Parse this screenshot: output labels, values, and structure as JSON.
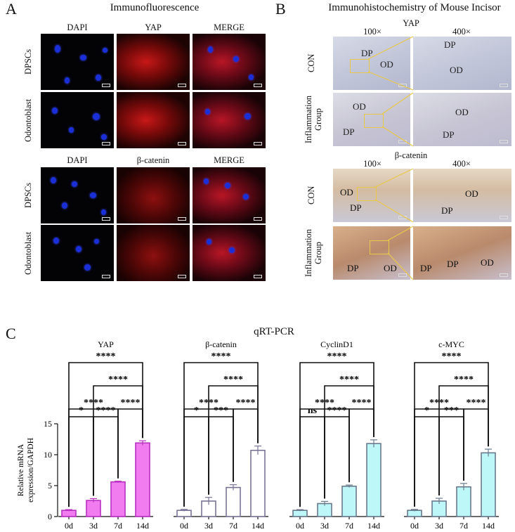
{
  "panel_a": {
    "letter": "A",
    "title": "Immunofluorescence",
    "yap_block": {
      "columns": [
        "DAPI",
        "YAP",
        "MERGE"
      ],
      "rows": [
        "DPSCs",
        "Odontoblast"
      ]
    },
    "catenin_block": {
      "columns": [
        "DAPI",
        "β-catenin",
        "MERGE"
      ],
      "rows": [
        "DPSCs",
        "Odontoblast"
      ]
    }
  },
  "panel_b": {
    "letter": "B",
    "title": "Immunohistochemistry of Mouse Incisor",
    "yap_block": {
      "marker": "YAP",
      "mag_low": "100×",
      "mag_high": "400×",
      "rows": [
        "CON",
        "Inflammation Group"
      ]
    },
    "catenin_block": {
      "marker": "β-catenin",
      "mag_low": "100×",
      "mag_high": "400×",
      "rows": [
        "CON",
        "Inflammation Group"
      ]
    },
    "tissue_labels": {
      "dp": "DP",
      "od": "OD"
    }
  },
  "panel_c": {
    "letter": "C",
    "title": "qRT-PCR"
  },
  "chart_data": {
    "type": "bar",
    "title": "qRT-PCR",
    "ylabel": "Relative mRNA expression/GAPDH",
    "ylim": [
      0,
      15
    ],
    "yticks": [
      0,
      5,
      10,
      15
    ],
    "categories": [
      "0d",
      "3d",
      "7d",
      "14d"
    ],
    "series": [
      {
        "name": "YAP",
        "values": [
          1.0,
          2.6,
          5.6,
          11.9
        ],
        "errors": [
          0.12,
          0.3,
          0.12,
          0.35
        ],
        "fill": "#f07cf0",
        "stroke": "#b830c0",
        "sig": {
          "0d-3d": "*",
          "3d-7d": "****",
          "7d-14d": "****",
          "0d-7d": "****",
          "3d-14d": "****",
          "0d-14d": "****"
        }
      },
      {
        "name": "β-catenin",
        "values": [
          1.0,
          2.5,
          4.7,
          10.7
        ],
        "errors": [
          0.15,
          0.6,
          0.45,
          0.7
        ],
        "fill": "#ffffff",
        "stroke": "#7a7496",
        "sig": {
          "0d-3d": "*",
          "3d-7d": "***",
          "7d-14d": "****",
          "0d-7d": "****",
          "3d-14d": "****",
          "0d-14d": "****"
        }
      },
      {
        "name": "CyclinD1",
        "values": [
          1.0,
          2.1,
          4.9,
          11.8
        ],
        "errors": [
          0.12,
          0.35,
          0.2,
          0.6
        ],
        "fill": "#bdf7f7",
        "stroke": "#6a7a8c",
        "sig": {
          "0d-3d": "ns",
          "3d-7d": "****",
          "7d-14d": "****",
          "0d-7d": "****",
          "3d-14d": "****",
          "0d-14d": "****"
        }
      },
      {
        "name": "c-MYC",
        "values": [
          1.0,
          2.5,
          4.8,
          10.3
        ],
        "errors": [
          0.15,
          0.45,
          0.55,
          0.6
        ],
        "fill": "#bdf7f7",
        "stroke": "#6a7a8c",
        "sig": {
          "0d-3d": "*",
          "3d-7d": "***",
          "7d-14d": "****",
          "0d-7d": "****",
          "3d-14d": "****",
          "0d-14d": "****"
        }
      }
    ]
  }
}
